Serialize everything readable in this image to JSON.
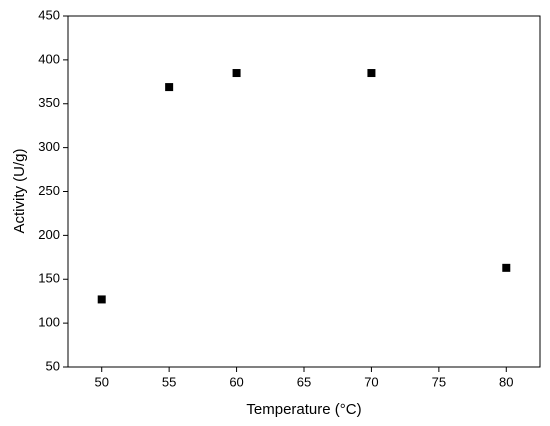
{
  "chart_data": {
    "type": "scatter",
    "x_label": "Temperature (°C)",
    "y_label": "Activity (U/g)",
    "x": [
      50,
      55,
      60,
      70,
      80
    ],
    "values": [
      127,
      369,
      385,
      385,
      163
    ],
    "color": "#000000",
    "xlim": [
      47.5,
      82.5
    ],
    "xticks": [
      50,
      55,
      60,
      65,
      70,
      75,
      80
    ],
    "ylim": [
      50,
      450
    ],
    "yticks": [
      50,
      100,
      150,
      200,
      250,
      300,
      350,
      400,
      450
    ],
    "grid": false
  }
}
